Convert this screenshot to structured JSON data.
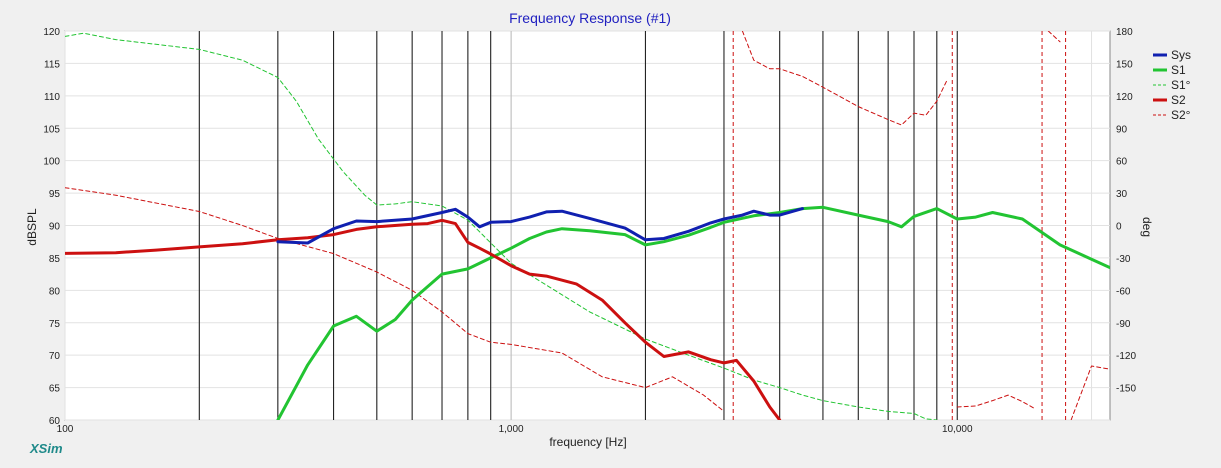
{
  "chart_data": {
    "type": "line",
    "title": "Frequency Response (#1)",
    "xlabel": "frequency [Hz]",
    "ylabel": "dBSPL",
    "y2label": "deg",
    "brand": "XSim",
    "x_scale": "log",
    "xlim": [
      100,
      22000
    ],
    "ylim": [
      60,
      120
    ],
    "y2lim": [
      -180,
      180
    ],
    "x_tick_labels": [
      {
        "value": 100,
        "label": "100"
      },
      {
        "value": 1000,
        "label": "1,000"
      },
      {
        "value": 10000,
        "label": "10,000"
      }
    ],
    "y_ticks": [
      60,
      65,
      70,
      75,
      80,
      85,
      90,
      95,
      100,
      105,
      110,
      115,
      120
    ],
    "y2_ticks": [
      -150,
      -120,
      -90,
      -60,
      -30,
      0,
      30,
      60,
      90,
      120,
      150,
      180
    ],
    "vertical_markers_hz": [
      200,
      300,
      400,
      500,
      600,
      700,
      800,
      900,
      2000,
      3000,
      4000,
      5000,
      6000,
      7000,
      8000,
      9000,
      10000
    ],
    "grid": true,
    "legend_position": "top-right",
    "series": [
      {
        "name": "Sys",
        "axis": "left",
        "color": "#1020b0",
        "style": "solid-thick",
        "x": [
          300,
          350,
          400,
          450,
          500,
          600,
          700,
          750,
          800,
          850,
          900,
          1000,
          1100,
          1200,
          1300,
          1500,
          1800,
          2000,
          2200,
          2500,
          2800,
          3000,
          3300,
          3500,
          3800,
          4000,
          4500
        ],
        "y": [
          87.5,
          87.3,
          89.5,
          90.7,
          90.6,
          91.0,
          92.0,
          92.5,
          91.3,
          89.8,
          90.5,
          90.6,
          91.3,
          92.1,
          92.2,
          91.1,
          89.6,
          87.8,
          88.0,
          89.1,
          90.4,
          91.0,
          91.6,
          92.2,
          91.6,
          91.6,
          92.6
        ]
      },
      {
        "name": "S1",
        "axis": "left",
        "color": "#22c432",
        "style": "solid-thick",
        "x": [
          300,
          350,
          400,
          450,
          500,
          550,
          600,
          700,
          800,
          900,
          1000,
          1100,
          1200,
          1300,
          1500,
          1800,
          2000,
          2200,
          2500,
          2800,
          3000,
          3500,
          4000,
          4500,
          5000,
          6000,
          7000,
          7500,
          8000,
          9000,
          10000,
          11000,
          12000,
          14000,
          17000,
          20000,
          22000
        ],
        "y": [
          60.0,
          68.5,
          74.5,
          76.0,
          73.7,
          75.5,
          78.5,
          82.5,
          83.3,
          85.0,
          86.5,
          88.0,
          89.0,
          89.5,
          89.2,
          88.6,
          87.0,
          87.5,
          88.5,
          89.7,
          90.5,
          91.5,
          92.0,
          92.6,
          92.8,
          91.6,
          90.6,
          89.8,
          91.4,
          92.6,
          91.0,
          91.3,
          92.0,
          91.0,
          87.0,
          84.8,
          83.5
        ]
      },
      {
        "name": "S1°",
        "axis": "right",
        "color": "#22c432",
        "style": "dashed",
        "x": [
          100,
          110,
          130,
          200,
          250,
          300,
          330,
          370,
          420,
          470,
          500,
          550,
          600,
          700,
          800,
          1000,
          1500,
          2000,
          2500,
          3000,
          3500,
          4000,
          4500,
          5000,
          6000,
          7000,
          8000,
          8500,
          9000
        ],
        "y": [
          175,
          178,
          172,
          163,
          153,
          137,
          115,
          80,
          50,
          28,
          19,
          20,
          22,
          18,
          5,
          -35,
          -80,
          -105,
          -120,
          -132,
          -143,
          -150,
          -157,
          -162,
          -168,
          -172,
          -174,
          -179,
          -180
        ]
      },
      {
        "name": "S2",
        "axis": "left",
        "color": "#cc1010",
        "style": "solid-thick",
        "x": [
          100,
          130,
          160,
          200,
          250,
          300,
          350,
          400,
          450,
          500,
          600,
          650,
          700,
          750,
          800,
          850,
          900,
          1000,
          1100,
          1200,
          1400,
          1600,
          1800,
          2000,
          2200,
          2500,
          2800,
          3000,
          3200,
          3500,
          3800,
          4000
        ],
        "y": [
          85.7,
          85.8,
          86.2,
          86.7,
          87.2,
          87.8,
          88.1,
          88.6,
          89.4,
          89.8,
          90.2,
          90.3,
          90.8,
          90.3,
          87.4,
          86.5,
          85.6,
          83.8,
          82.5,
          82.2,
          81.0,
          78.5,
          75.0,
          72.0,
          69.8,
          70.5,
          69.3,
          68.8,
          69.2,
          66.0,
          62.0,
          60.0
        ]
      },
      {
        "name": "S2°",
        "axis": "right",
        "color": "#cc1010",
        "style": "dashed",
        "x": [
          100,
          130,
          200,
          250,
          300,
          400,
          500,
          600,
          700,
          800,
          900,
          1000,
          1300,
          1600,
          2000,
          2300,
          2700,
          3000,
          3300,
          3500,
          3800,
          4000,
          4500,
          5000,
          6000,
          7000,
          7500,
          8000,
          8500,
          9000,
          9500,
          10000,
          11000,
          12000,
          13000,
          14000,
          15000,
          16000,
          17000,
          18000,
          20000,
          22000
        ],
        "y": [
          35,
          28,
          13,
          0,
          -12,
          -26,
          -43,
          -60,
          -80,
          -100,
          -108,
          -110,
          -118,
          -140,
          -150,
          -140,
          -157,
          -172,
          180,
          153,
          145,
          145,
          138,
          128,
          110,
          98,
          93,
          104,
          102,
          115,
          135,
          -168,
          -167,
          -162,
          -157,
          -163,
          -170,
          180,
          170,
          -180,
          -130,
          -133
        ]
      }
    ]
  }
}
